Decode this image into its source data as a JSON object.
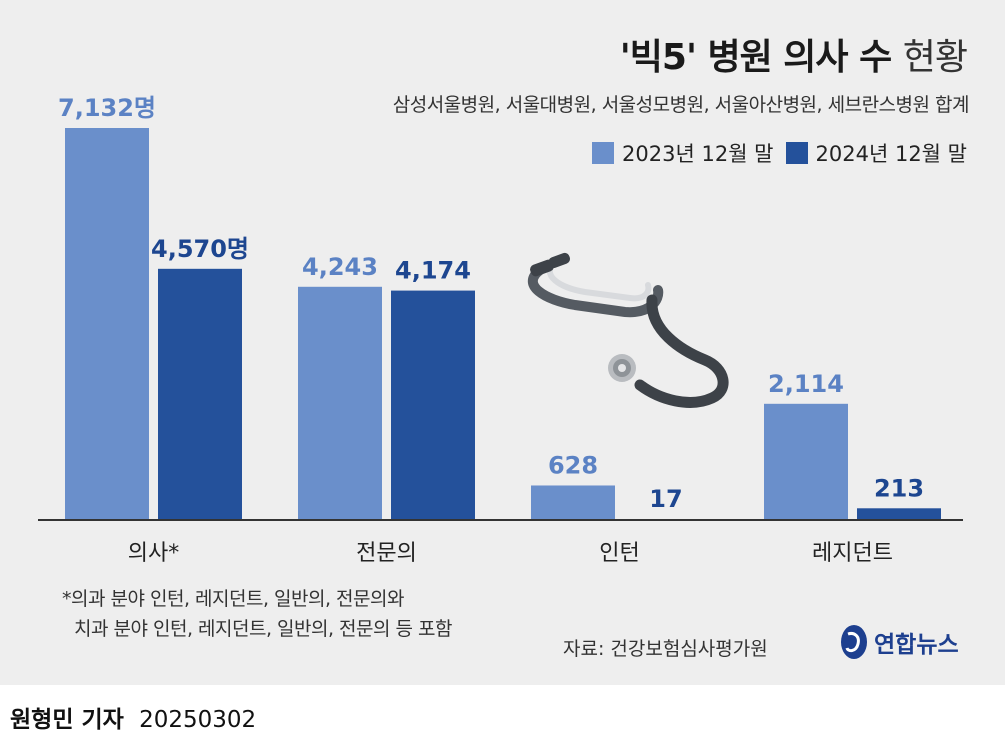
{
  "title": {
    "bold": "'빅5' 병원 의사 수",
    "light": "현황"
  },
  "subtitle": "삼성서울병원, 서울대병원, 서울성모병원, 서울아산병원, 세브란스병원 합계",
  "colors": {
    "series_2023": "#6a8fcb",
    "series_2024": "#24519b",
    "panel_bg": "#eeeeee"
  },
  "chart_data": {
    "type": "bar",
    "categories": [
      "의사*",
      "전문의",
      "인턴",
      "레지던트"
    ],
    "series": [
      {
        "name": "2023년 12월 말",
        "values": [
          7132,
          4243,
          628,
          2114
        ],
        "labels": [
          "7,132명",
          "4,243",
          "628",
          "2,114"
        ]
      },
      {
        "name": "2024년 12월 말",
        "values": [
          4570,
          4174,
          17,
          213
        ],
        "labels": [
          "4,570명",
          "4,174",
          "17",
          "213"
        ]
      }
    ],
    "legend_position": "top-right",
    "ylim": [
      0,
      7132
    ],
    "grid": false
  },
  "footnote": {
    "line1": "*의과 분야 인턴, 레지던트, 일반의, 전문의와",
    "line2": "치과 분야 인턴, 레지던트, 일반의, 전문의 등 포함"
  },
  "source": "자료: 건강보험심사평가원",
  "logo": {
    "text": "연합뉴스",
    "icon": "yonhap-logo-icon"
  },
  "illustration": {
    "icon": "stethoscope-icon"
  },
  "byline": {
    "name": "원형민 기자",
    "date": "20250302"
  }
}
